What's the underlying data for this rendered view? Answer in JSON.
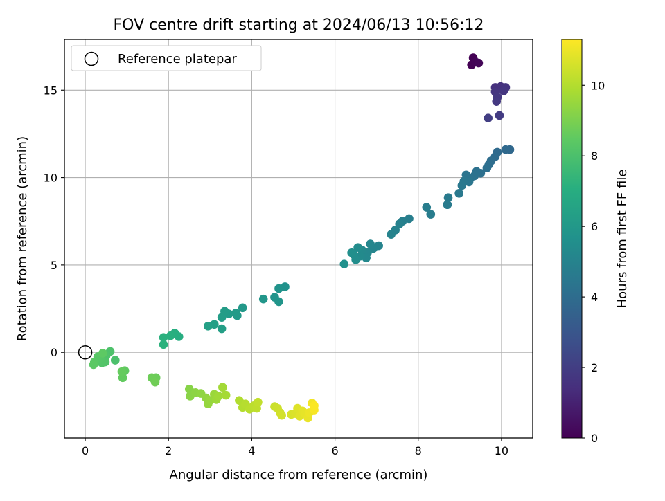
{
  "chart_data": {
    "type": "scatter",
    "title": "FOV centre drift starting at 2024/06/13 10:56:12",
    "xlabel": "Angular distance from reference (arcmin)",
    "ylabel": "Rotation from reference (arcmin)",
    "xlim": [
      -0.5,
      10.75
    ],
    "ylim": [
      -4.9,
      17.9
    ],
    "xticks": [
      0,
      2,
      4,
      6,
      8,
      10
    ],
    "yticks": [
      0,
      5,
      10,
      15
    ],
    "grid": true,
    "legend": {
      "position": "top-left",
      "entries": [
        "Reference platepar"
      ]
    },
    "reference_point": {
      "x": 0,
      "y": 0
    },
    "colorbar": {
      "label": "Hours from first FF file",
      "range": [
        0,
        11.3
      ],
      "ticks": [
        0,
        2,
        4,
        6,
        8,
        10
      ],
      "colormap": "viridis"
    },
    "points": [
      [
        9.32,
        16.85,
        0.0
      ],
      [
        9.28,
        16.45,
        0.05
      ],
      [
        9.38,
        16.6,
        0.1
      ],
      [
        9.45,
        16.55,
        0.15
      ],
      [
        9.85,
        15.15,
        1.5
      ],
      [
        9.98,
        15.2,
        1.55
      ],
      [
        10.1,
        15.15,
        1.6
      ],
      [
        9.85,
        14.9,
        1.65
      ],
      [
        10.05,
        14.95,
        1.7
      ],
      [
        9.9,
        14.6,
        1.75
      ],
      [
        9.88,
        14.35,
        1.8
      ],
      [
        9.95,
        13.55,
        1.9
      ],
      [
        9.68,
        13.4,
        2.0
      ],
      [
        10.2,
        11.6,
        3.8
      ],
      [
        10.1,
        11.6,
        3.85
      ],
      [
        9.9,
        11.45,
        3.9
      ],
      [
        9.85,
        11.2,
        3.95
      ],
      [
        9.75,
        10.95,
        4.0
      ],
      [
        9.7,
        10.75,
        4.05
      ],
      [
        9.65,
        10.55,
        4.1
      ],
      [
        9.5,
        10.25,
        4.15
      ],
      [
        9.4,
        10.35,
        4.2
      ],
      [
        9.35,
        10.1,
        4.25
      ],
      [
        9.25,
        9.95,
        4.3
      ],
      [
        9.15,
        10.15,
        4.35
      ],
      [
        9.22,
        9.75,
        4.4
      ],
      [
        9.1,
        9.8,
        4.45
      ],
      [
        9.05,
        9.55,
        4.5
      ],
      [
        8.98,
        9.1,
        4.55
      ],
      [
        8.72,
        8.85,
        4.6
      ],
      [
        8.7,
        8.45,
        4.65
      ],
      [
        8.3,
        7.9,
        4.7
      ],
      [
        8.2,
        8.3,
        4.75
      ],
      [
        7.78,
        7.65,
        4.8
      ],
      [
        7.62,
        7.5,
        4.85
      ],
      [
        7.55,
        7.35,
        4.9
      ],
      [
        7.45,
        7.0,
        4.95
      ],
      [
        7.35,
        6.75,
        5.0
      ],
      [
        7.05,
        6.1,
        5.05
      ],
      [
        6.92,
        5.95,
        5.1
      ],
      [
        6.85,
        6.2,
        5.15
      ],
      [
        6.78,
        5.7,
        5.2
      ],
      [
        6.75,
        5.4,
        5.25
      ],
      [
        6.65,
        5.85,
        5.3
      ],
      [
        6.6,
        5.5,
        5.35
      ],
      [
        6.55,
        6.0,
        5.4
      ],
      [
        6.5,
        5.3,
        5.45
      ],
      [
        6.45,
        5.6,
        5.5
      ],
      [
        6.4,
        5.7,
        5.55
      ],
      [
        6.22,
        5.05,
        5.6
      ],
      [
        4.8,
        3.75,
        5.7
      ],
      [
        4.65,
        3.65,
        5.75
      ],
      [
        4.55,
        3.15,
        5.8
      ],
      [
        4.65,
        2.9,
        5.85
      ],
      [
        4.28,
        3.05,
        5.9
      ],
      [
        3.78,
        2.55,
        6.0
      ],
      [
        3.65,
        2.1,
        6.05
      ],
      [
        3.62,
        2.25,
        6.1
      ],
      [
        3.45,
        2.2,
        6.15
      ],
      [
        3.35,
        2.35,
        6.2
      ],
      [
        3.28,
        2.0,
        6.25
      ],
      [
        3.28,
        1.35,
        6.3
      ],
      [
        3.1,
        1.6,
        6.35
      ],
      [
        2.95,
        1.5,
        6.4
      ],
      [
        2.25,
        0.9,
        7.0
      ],
      [
        2.15,
        1.1,
        7.05
      ],
      [
        2.05,
        0.95,
        7.1
      ],
      [
        1.88,
        0.85,
        7.15
      ],
      [
        1.88,
        0.45,
        7.2
      ],
      [
        0.72,
        -0.45,
        8.0
      ],
      [
        0.6,
        0.05,
        8.05
      ],
      [
        0.5,
        -0.2,
        8.1
      ],
      [
        0.48,
        -0.55,
        8.15
      ],
      [
        0.4,
        -0.6,
        8.2
      ],
      [
        0.35,
        -0.35,
        8.25
      ],
      [
        0.3,
        -0.25,
        8.3
      ],
      [
        0.22,
        -0.55,
        8.35
      ],
      [
        0.2,
        -0.7,
        8.4
      ],
      [
        0.42,
        -0.05,
        8.45
      ],
      [
        0.95,
        -1.05,
        8.5
      ],
      [
        0.9,
        -1.45,
        8.55
      ],
      [
        0.88,
        -1.1,
        8.6
      ],
      [
        1.7,
        -1.45,
        8.7
      ],
      [
        1.6,
        -1.45,
        8.75
      ],
      [
        1.68,
        -1.7,
        8.8
      ],
      [
        2.5,
        -2.1,
        9.2
      ],
      [
        2.52,
        -2.5,
        9.25
      ],
      [
        2.65,
        -2.3,
        9.3
      ],
      [
        2.78,
        -2.35,
        9.35
      ],
      [
        2.9,
        -2.6,
        9.4
      ],
      [
        2.95,
        -2.95,
        9.45
      ],
      [
        3.0,
        -2.75,
        9.5
      ],
      [
        3.1,
        -2.4,
        9.55
      ],
      [
        3.15,
        -2.7,
        9.6
      ],
      [
        3.2,
        -2.5,
        9.65
      ],
      [
        3.3,
        -2.0,
        9.7
      ],
      [
        3.38,
        -2.45,
        9.75
      ],
      [
        3.7,
        -2.75,
        9.95
      ],
      [
        3.78,
        -3.15,
        10.0
      ],
      [
        3.85,
        -2.95,
        10.05
      ],
      [
        3.95,
        -3.25,
        10.1
      ],
      [
        4.05,
        -3.05,
        10.15
      ],
      [
        4.12,
        -3.2,
        10.2
      ],
      [
        4.15,
        -2.85,
        10.25
      ],
      [
        4.55,
        -3.1,
        10.4
      ],
      [
        4.62,
        -3.2,
        10.45
      ],
      [
        4.68,
        -3.45,
        10.5
      ],
      [
        4.72,
        -3.6,
        10.55
      ],
      [
        4.95,
        -3.55,
        10.65
      ],
      [
        5.05,
        -3.5,
        10.7
      ],
      [
        5.1,
        -3.2,
        10.75
      ],
      [
        5.15,
        -3.65,
        10.8
      ],
      [
        5.22,
        -3.35,
        10.85
      ],
      [
        5.28,
        -3.5,
        10.9
      ],
      [
        5.35,
        -3.75,
        10.95
      ],
      [
        5.38,
        -3.45,
        11.0
      ],
      [
        5.45,
        -2.9,
        11.1
      ],
      [
        5.5,
        -3.3,
        11.2
      ],
      [
        5.5,
        -3.05,
        11.25
      ]
    ]
  }
}
